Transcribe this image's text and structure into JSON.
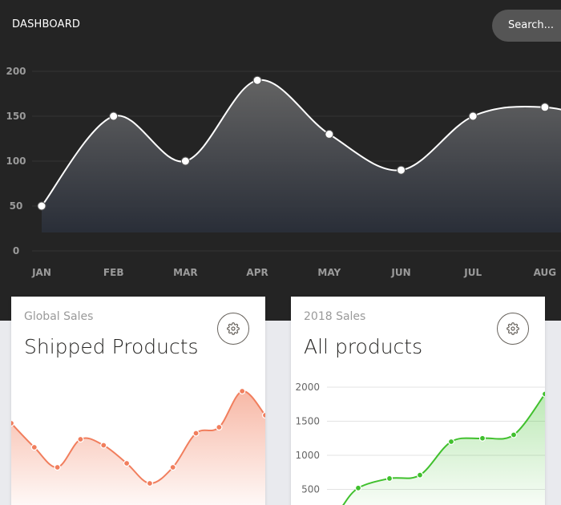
{
  "header": {
    "brand": "DASHBOARD",
    "search_placeholder": "Search..."
  },
  "main_chart": {
    "chart_data": {
      "type": "area",
      "categories": [
        "JAN",
        "FEB",
        "MAR",
        "APR",
        "MAY",
        "JUN",
        "JUL",
        "AUG"
      ],
      "values": [
        50,
        150,
        100,
        190,
        130,
        90,
        150,
        160
      ],
      "ylim": [
        0,
        200
      ],
      "yticks": [
        0,
        50,
        100,
        150,
        200
      ],
      "grid": true,
      "line_color": "#ffffff"
    }
  },
  "cards": [
    {
      "category": "Global Sales",
      "title": "Shipped Products",
      "chart_data": {
        "type": "area",
        "values": [
          40,
          28,
          18,
          32,
          29,
          20,
          10,
          18,
          35,
          38,
          56,
          44
        ],
        "line_color": "#f17e5d"
      }
    },
    {
      "category": "2018 Sales",
      "title": "All products",
      "chart_data": {
        "type": "area",
        "values": [
          250,
          520,
          660,
          710,
          1200,
          1250,
          1300,
          1900
        ],
        "ylim": [
          0,
          2000
        ],
        "yticks": [
          500,
          1000,
          1500,
          2000
        ],
        "grid": true,
        "line_color": "#40c02d"
      }
    }
  ]
}
